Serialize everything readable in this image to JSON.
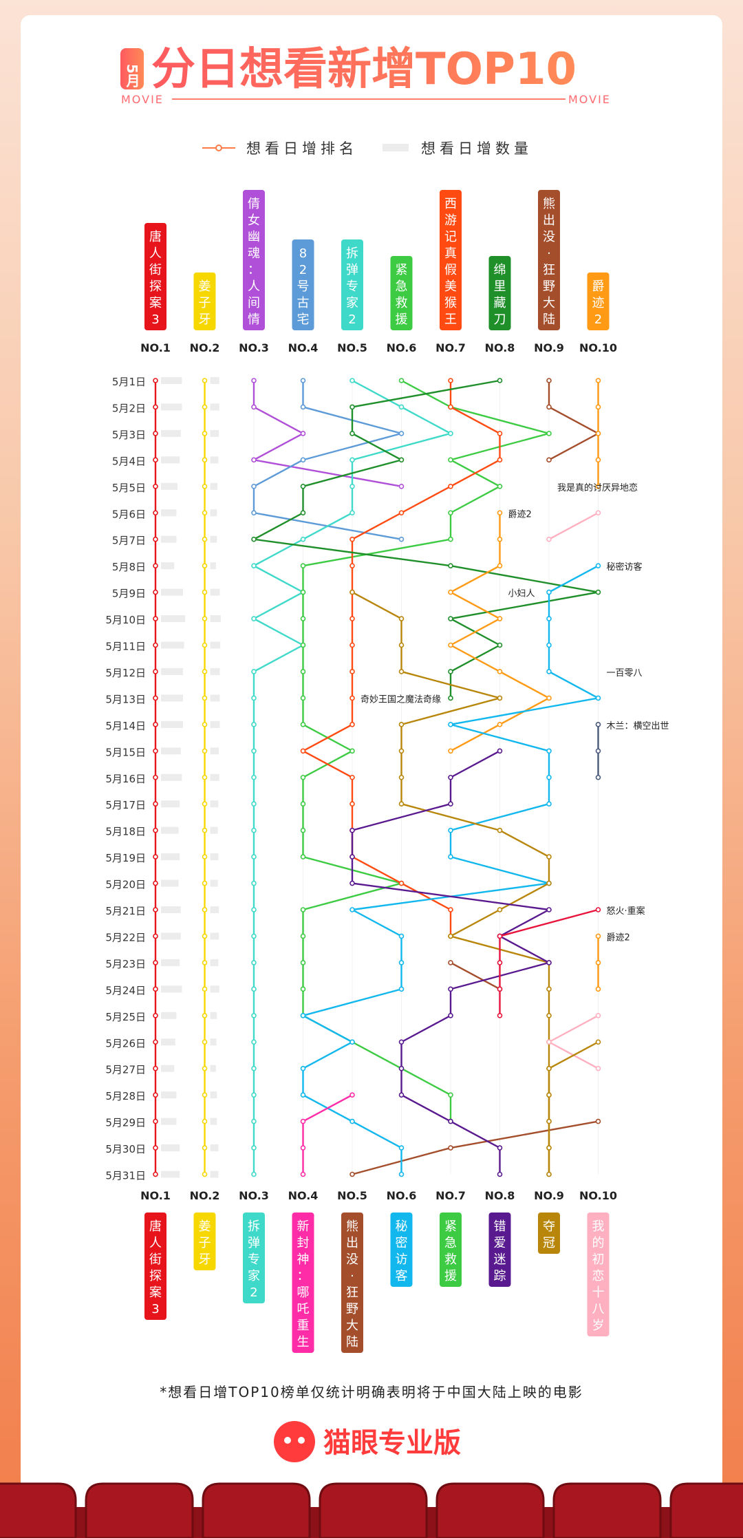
{
  "header": {
    "month_badge": "5月",
    "title": "分日想看新增TOP10",
    "deco_left": "MOVIE",
    "deco_right": "MOVIE"
  },
  "legend": {
    "rank_label": "想看日增排名",
    "count_label": "想看日增数量"
  },
  "footnote": "*想看日增TOP10榜单仅统计明确表明将于中国大陆上映的电影",
  "brand": {
    "name": "猫眼专业版"
  },
  "colors": {
    "title_gradient_start": "#ff5a5f",
    "title_gradient_end": "#ff8a57",
    "rank_line": "#ff7a45",
    "count_bar": "#ececec",
    "seat": "#a8171f"
  },
  "chart_data": {
    "type": "line",
    "ranks": [
      "NO.1",
      "NO.2",
      "NO.3",
      "NO.4",
      "NO.5",
      "NO.6",
      "NO.7",
      "NO.8",
      "NO.9",
      "NO.10"
    ],
    "days": [
      "5月1日",
      "5月2日",
      "5月3日",
      "5月4日",
      "5月5日",
      "5月6日",
      "5月7日",
      "5月8日",
      "5月9日",
      "5月10日",
      "5月11日",
      "5月12日",
      "5月13日",
      "5月14日",
      "5月15日",
      "5月16日",
      "5月17日",
      "5月18日",
      "5月19日",
      "5月20日",
      "5月21日",
      "5月22日",
      "5月23日",
      "5月24日",
      "5月25日",
      "5月26日",
      "5月27日",
      "5月28日",
      "5月29日",
      "5月30日",
      "5月31日"
    ],
    "top_labels": [
      {
        "name": "唐人街探案3",
        "color": "#e8141b"
      },
      {
        "name": "姜子牙",
        "color": "#f7d700"
      },
      {
        "name": "倩女幽魂：人间情",
        "color": "#b04fd8"
      },
      {
        "name": "82号古宅",
        "color": "#5d9bd8"
      },
      {
        "name": "拆弹专家2",
        "color": "#3ed9c9"
      },
      {
        "name": "紧急救援",
        "color": "#3ccb43"
      },
      {
        "name": "西游记真假美猴王",
        "color": "#ff4a12"
      },
      {
        "name": "绵里藏刀",
        "color": "#1f8f2a"
      },
      {
        "name": "熊出没·狂野大陆",
        "color": "#a44e2c"
      },
      {
        "name": "爵迹2",
        "color": "#ff9a14"
      }
    ],
    "bottom_labels": [
      {
        "name": "唐人街探案3",
        "color": "#e8141b"
      },
      {
        "name": "姜子牙",
        "color": "#f7d700"
      },
      {
        "name": "拆弹专家2",
        "color": "#3ed9c9"
      },
      {
        "name": "新封神：哪吒重生",
        "color": "#ff2ca8"
      },
      {
        "name": "熊出没·狂野大陆",
        "color": "#a44e2c"
      },
      {
        "name": "秘密访客",
        "color": "#12b7ee"
      },
      {
        "name": "紧急救援",
        "color": "#3ccb43"
      },
      {
        "name": "错爱迷踪",
        "color": "#5a1a8f"
      },
      {
        "name": "夺冠",
        "color": "#b8860b"
      },
      {
        "name": "我的初恋十八岁",
        "color": "#ffb0c0"
      }
    ],
    "annotations": [
      {
        "text": "我是真的讨厌异地恋",
        "day": 4,
        "rank": 9
      },
      {
        "text": "爵迹2",
        "day": 5,
        "rank": 8
      },
      {
        "text": "秘密访客",
        "day": 7,
        "rank": 10
      },
      {
        "text": "小妇人",
        "day": 8,
        "rank": 8
      },
      {
        "text": "一百零八",
        "day": 11,
        "rank": 10
      },
      {
        "text": "奇妙王国之魔法奇缘",
        "day": 12,
        "rank": 5
      },
      {
        "text": "木兰：横空出世",
        "day": 13,
        "rank": 10
      },
      {
        "text": "怒火·重案",
        "day": 20,
        "rank": 10
      },
      {
        "text": "爵迹2",
        "day": 21,
        "rank": 10
      }
    ],
    "count_bars": [
      19,
      19,
      18,
      17,
      15,
      14,
      14,
      12,
      20,
      22,
      21,
      20,
      20,
      20,
      18,
      19,
      17,
      16,
      17,
      16,
      18,
      18,
      17,
      19,
      14,
      13,
      12,
      14,
      14,
      17,
      17
    ],
    "series": [
      {
        "name": "唐人街探案3",
        "color": "#e8141b",
        "points": [
          [
            0,
            30,
            1
          ]
        ]
      },
      {
        "name": "姜子牙",
        "color": "#f7d700",
        "points": [
          [
            0,
            30,
            2
          ]
        ]
      },
      {
        "name": "倩女幽魂：人间情",
        "color": "#b04fd8",
        "points": [
          [
            0,
            3
          ],
          [
            1,
            3
          ],
          [
            2,
            4
          ],
          [
            3,
            3
          ],
          [
            4,
            6
          ]
        ]
      },
      {
        "name": "82号古宅",
        "color": "#5d9bd8",
        "points": [
          [
            0,
            4
          ],
          [
            1,
            4
          ],
          [
            2,
            6
          ],
          [
            3,
            4
          ],
          [
            4,
            3
          ],
          [
            5,
            3
          ],
          [
            6,
            6
          ]
        ]
      },
      {
        "name": "拆弹专家2",
        "color": "#3ed9c9",
        "points": [
          [
            0,
            5
          ],
          [
            1,
            6
          ],
          [
            2,
            7
          ],
          [
            3,
            5
          ],
          [
            4,
            5
          ],
          [
            5,
            5
          ],
          [
            6,
            4
          ],
          [
            7,
            3
          ],
          [
            8,
            4
          ],
          [
            9,
            3
          ],
          [
            10,
            4
          ],
          [
            11,
            3
          ],
          [
            12,
            3
          ],
          [
            13,
            3
          ],
          [
            14,
            3
          ],
          [
            15,
            3
          ],
          [
            16,
            3
          ],
          [
            17,
            3
          ],
          [
            18,
            3
          ],
          [
            19,
            3
          ],
          [
            20,
            3
          ],
          [
            21,
            3
          ],
          [
            22,
            3
          ],
          [
            23,
            3
          ],
          [
            24,
            3
          ],
          [
            25,
            3
          ],
          [
            26,
            3
          ],
          [
            27,
            3
          ],
          [
            28,
            3
          ],
          [
            29,
            3
          ],
          [
            30,
            3
          ]
        ]
      },
      {
        "name": "紧急救援",
        "color": "#3ccb43",
        "points": [
          [
            0,
            6
          ],
          [
            1,
            7
          ],
          [
            2,
            9
          ],
          [
            3,
            7
          ],
          [
            4,
            8
          ],
          [
            5,
            7
          ],
          [
            6,
            7
          ],
          [
            7,
            4
          ],
          [
            8,
            4
          ],
          [
            9,
            4
          ],
          [
            10,
            4
          ],
          [
            11,
            4
          ],
          [
            12,
            4
          ],
          [
            13,
            4
          ],
          [
            14,
            5
          ],
          [
            15,
            4
          ],
          [
            16,
            4
          ],
          [
            17,
            4
          ],
          [
            18,
            4
          ],
          [
            19,
            6
          ],
          [
            20,
            4
          ],
          [
            21,
            4
          ],
          [
            22,
            4
          ],
          [
            23,
            4
          ],
          [
            24,
            4
          ],
          [
            25,
            5
          ],
          [
            26,
            6
          ],
          [
            27,
            7
          ],
          [
            28,
            7
          ]
        ]
      },
      {
        "name": "西游记真假美猴王",
        "color": "#ff4a12",
        "points": [
          [
            0,
            7
          ],
          [
            1,
            7
          ],
          [
            2,
            8
          ],
          [
            3,
            8
          ],
          [
            4,
            7
          ],
          [
            5,
            6
          ],
          [
            6,
            5
          ],
          [
            7,
            5
          ],
          [
            8,
            5
          ],
          [
            9,
            5
          ],
          [
            10,
            5
          ],
          [
            11,
            5
          ],
          [
            12,
            5
          ],
          [
            13,
            5
          ],
          [
            14,
            4
          ],
          [
            15,
            5
          ],
          [
            16,
            5
          ],
          [
            17,
            5
          ],
          [
            18,
            5
          ],
          [
            19,
            6
          ],
          [
            20,
            7
          ],
          [
            21,
            7
          ]
        ]
      },
      {
        "name": "绵里藏刀",
        "color": "#1f8f2a",
        "points": [
          [
            0,
            8
          ],
          [
            1,
            5
          ],
          [
            2,
            5
          ],
          [
            3,
            6
          ],
          [
            4,
            4
          ],
          [
            5,
            4
          ],
          [
            6,
            3
          ],
          [
            7,
            7
          ],
          [
            8,
            10
          ],
          [
            9,
            7
          ],
          [
            10,
            8
          ],
          [
            11,
            7
          ],
          [
            12,
            7
          ]
        ]
      },
      {
        "name": "熊出没·狂野大陆",
        "color": "#a44e2c",
        "points": [
          [
            0,
            9
          ],
          [
            1,
            9
          ],
          [
            2,
            10
          ],
          [
            3,
            9
          ]
        ]
      },
      {
        "name": "熊出没·狂野大陆(下)",
        "color": "#a44e2c",
        "points": [
          [
            22,
            7
          ],
          [
            23,
            8
          ]
        ]
      },
      {
        "name": "熊出没·狂野大陆(末)",
        "color": "#a44e2c",
        "points": [
          [
            30,
            5
          ],
          [
            29,
            7
          ],
          [
            28,
            10
          ]
        ]
      },
      {
        "name": "爵迹2",
        "color": "#ff9a14",
        "points": [
          [
            0,
            10
          ],
          [
            1,
            10
          ],
          [
            2,
            10
          ],
          [
            3,
            10
          ],
          [
            4,
            10
          ]
        ]
      },
      {
        "name": "爵迹2(后)",
        "color": "#ff9a14",
        "points": [
          [
            5,
            8
          ],
          [
            6,
            8
          ],
          [
            7,
            8
          ],
          [
            8,
            7
          ],
          [
            9,
            8
          ],
          [
            10,
            7
          ],
          [
            11,
            8
          ],
          [
            12,
            9
          ],
          [
            13,
            8
          ],
          [
            14,
            7
          ]
        ]
      },
      {
        "name": "秘密访客",
        "color": "#12b7ee",
        "points": [
          [
            7,
            10
          ],
          [
            8,
            9
          ],
          [
            9,
            9
          ],
          [
            10,
            9
          ],
          [
            11,
            9
          ],
          [
            12,
            10
          ],
          [
            13,
            7
          ],
          [
            14,
            9
          ],
          [
            15,
            9
          ],
          [
            16,
            9
          ],
          [
            17,
            7
          ],
          [
            18,
            7
          ],
          [
            19,
            9
          ],
          [
            20,
            5
          ],
          [
            21,
            6
          ],
          [
            22,
            6
          ],
          [
            23,
            6
          ],
          [
            24,
            4
          ],
          [
            25,
            5
          ],
          [
            26,
            4
          ],
          [
            27,
            4
          ],
          [
            28,
            5
          ],
          [
            29,
            6
          ],
          [
            30,
            6
          ]
        ]
      },
      {
        "name": "奇妙王国之魔法奇缘",
        "color": "#b8860b",
        "points": [
          [
            8,
            5
          ],
          [
            9,
            6
          ],
          [
            10,
            6
          ],
          [
            11,
            6
          ],
          [
            12,
            8
          ],
          [
            13,
            6
          ],
          [
            14,
            6
          ],
          [
            15,
            6
          ],
          [
            16,
            6
          ],
          [
            17,
            8
          ],
          [
            18,
            9
          ],
          [
            19,
            9
          ],
          [
            20,
            8
          ],
          [
            21,
            7
          ],
          [
            22,
            9
          ],
          [
            23,
            9
          ],
          [
            24,
            9
          ],
          [
            25,
            9
          ],
          [
            26,
            9
          ],
          [
            27,
            9
          ],
          [
            28,
            9
          ],
          [
            29,
            9
          ],
          [
            30,
            9
          ]
        ]
      },
      {
        "name": "错爱迷踪",
        "color": "#5a1a8f",
        "points": [
          [
            14,
            8
          ],
          [
            15,
            7
          ],
          [
            16,
            7
          ],
          [
            17,
            5
          ],
          [
            18,
            5
          ],
          [
            19,
            5
          ],
          [
            20,
            9
          ],
          [
            21,
            8
          ],
          [
            22,
            9
          ],
          [
            23,
            7
          ],
          [
            24,
            7
          ],
          [
            25,
            6
          ],
          [
            26,
            6
          ],
          [
            27,
            6
          ],
          [
            28,
            7
          ],
          [
            29,
            8
          ],
          [
            30,
            8
          ]
        ]
      },
      {
        "name": "新封神：哪吒重生",
        "color": "#ff2ca8",
        "points": [
          [
            27,
            5
          ],
          [
            28,
            4
          ],
          [
            29,
            4
          ],
          [
            30,
            4
          ]
        ]
      },
      {
        "name": "我的初恋十八岁",
        "color": "#ffb0c0",
        "points": [
          [
            5,
            10
          ],
          [
            6,
            9
          ]
        ]
      },
      {
        "name": "我的初恋十八岁(后)",
        "color": "#ffb0c0",
        "points": [
          [
            24,
            10
          ],
          [
            25,
            9
          ],
          [
            26,
            10
          ]
        ]
      },
      {
        "name": "夺冠",
        "color": "#b8860b",
        "points": [
          [
            25,
            10
          ],
          [
            26,
            9
          ],
          [
            27,
            9
          ],
          [
            28,
            9
          ],
          [
            29,
            9
          ],
          [
            30,
            9
          ]
        ]
      },
      {
        "name": "怒火·重案",
        "color": "#e8143c",
        "points": [
          [
            20,
            10
          ],
          [
            21,
            8
          ],
          [
            22,
            8
          ],
          [
            23,
            8
          ],
          [
            24,
            8
          ]
        ]
      },
      {
        "name": "木兰：横空出世",
        "color": "#4a5a7a",
        "points": [
          [
            13,
            10
          ],
          [
            14,
            10
          ],
          [
            15,
            10
          ]
        ]
      },
      {
        "name": "爵迹2(底)",
        "color": "#ff9a14",
        "points": [
          [
            21,
            10
          ],
          [
            22,
            10
          ],
          [
            23,
            10
          ]
        ]
      }
    ]
  }
}
